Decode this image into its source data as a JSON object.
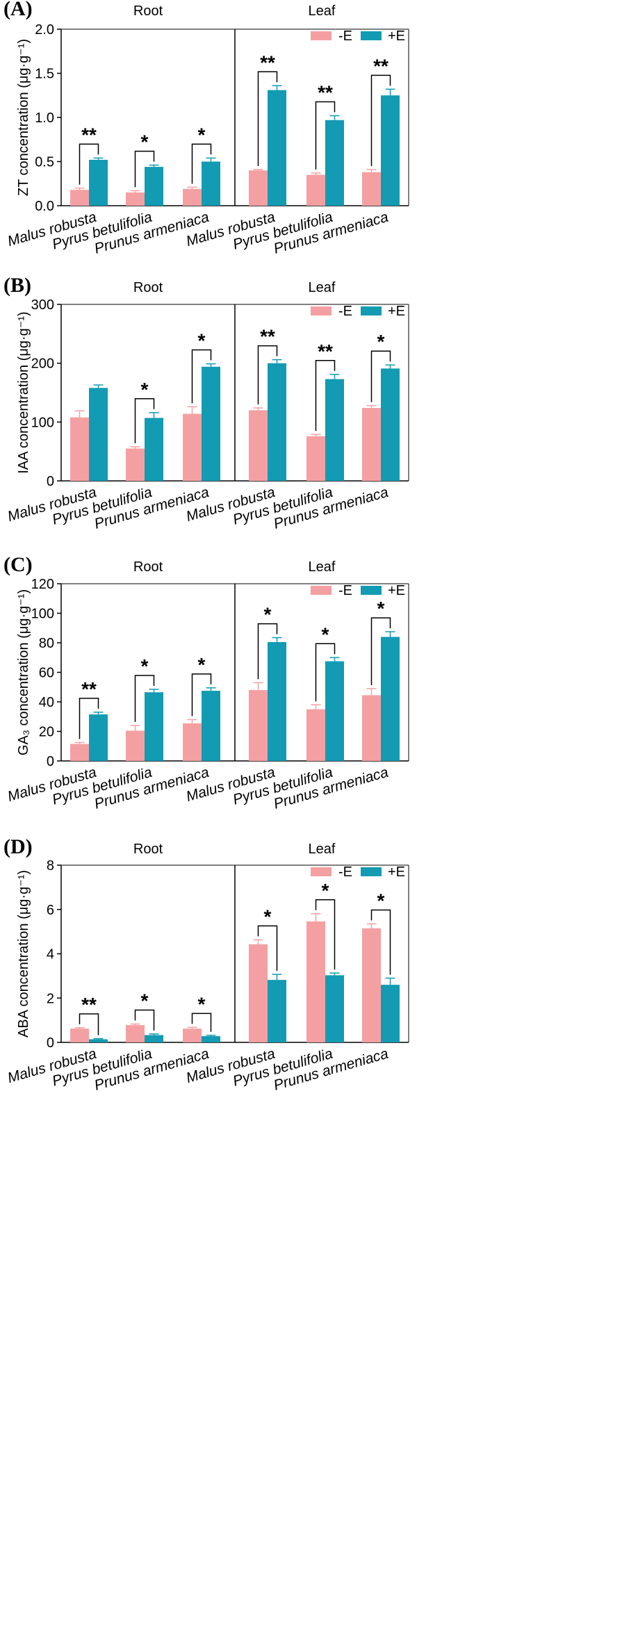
{
  "colors": {
    "minusE": "#F4A0A2",
    "plusE": "#129BB2",
    "axis": "#000000"
  },
  "legend": [
    "-E",
    "+E"
  ],
  "groups": [
    "Root",
    "Leaf"
  ],
  "categories": [
    "Malus robusta",
    "Pyrus betulifolia",
    "Prunus armeniaca"
  ],
  "chart_data": [
    {
      "panel": "(A)",
      "type": "bar",
      "ylabel": "ZT concentration (μg·g⁻¹)",
      "ylim": [
        0,
        2.0
      ],
      "yticks": [
        "0.0",
        "0.5",
        "1.0",
        "1.5",
        "2.0"
      ],
      "groups": [
        "Root",
        "Leaf"
      ],
      "categories": [
        "Malus robusta",
        "Pyrus betulifolia",
        "Prunus armeniaca"
      ],
      "series": [
        {
          "name": "-E",
          "values": [
            [
              0.18,
              0.15,
              0.19
            ],
            [
              0.4,
              0.35,
              0.38
            ]
          ],
          "errors": [
            [
              0.02,
              0.02,
              0.02
            ],
            [
              0.01,
              0.02,
              0.03
            ]
          ]
        },
        {
          "name": "+E",
          "values": [
            [
              0.52,
              0.44,
              0.5
            ],
            [
              1.31,
              0.97,
              1.25
            ]
          ],
          "errors": [
            [
              0.02,
              0.02,
              0.04
            ],
            [
              0.05,
              0.05,
              0.07
            ]
          ]
        }
      ],
      "significance": [
        [
          "**",
          "*",
          "*"
        ],
        [
          "**",
          "**",
          "**"
        ]
      ]
    },
    {
      "panel": "(B)",
      "type": "bar",
      "ylabel": "IAA concentration (μg·g⁻¹)",
      "ylim": [
        0,
        300
      ],
      "yticks": [
        "0",
        "100",
        "200",
        "300"
      ],
      "groups": [
        "Root",
        "Leaf"
      ],
      "categories": [
        "Malus robusta",
        "Pyrus betulifolia",
        "Prunus armeniaca"
      ],
      "series": [
        {
          "name": "-E",
          "values": [
            [
              108,
              55,
              114
            ],
            [
              120,
              76,
              124
            ]
          ],
          "errors": [
            [
              11,
              3,
              12
            ],
            [
              4,
              3,
              4
            ]
          ]
        },
        {
          "name": "+E",
          "values": [
            [
              158,
              107,
              194
            ],
            [
              200,
              173,
              191
            ]
          ],
          "errors": [
            [
              5,
              9,
              5
            ],
            [
              6,
              8,
              6
            ]
          ]
        }
      ],
      "significance": [
        [
          "",
          "*",
          "*"
        ],
        [
          "**",
          "**",
          "*"
        ]
      ]
    },
    {
      "panel": "(C)",
      "type": "bar",
      "ylabel": "GA₃ concentration (μg·g⁻¹)",
      "ylim": [
        0,
        120
      ],
      "yticks": [
        "0",
        "20",
        "40",
        "60",
        "80",
        "100",
        "120"
      ],
      "groups": [
        "Root",
        "Leaf"
      ],
      "categories": [
        "Malus robusta",
        "Pyrus betulifolia",
        "Prunus armeniaca"
      ],
      "series": [
        {
          "name": "-E",
          "values": [
            [
              11.5,
              20.5,
              25.5
            ],
            [
              48,
              35,
              44.5
            ]
          ],
          "errors": [
            [
              1,
              3.5,
              2.5
            ],
            [
              5,
              3,
              4.5
            ]
          ]
        },
        {
          "name": "+E",
          "values": [
            [
              31.5,
              46.5,
              47.5
            ],
            [
              80.5,
              67.5,
              84
            ]
          ],
          "errors": [
            [
              1.5,
              2,
              2
            ],
            [
              3,
              2.5,
              3.5
            ]
          ]
        }
      ],
      "significance": [
        [
          "**",
          "*",
          "*"
        ],
        [
          "*",
          "*",
          "*"
        ]
      ]
    },
    {
      "panel": "(D)",
      "type": "bar",
      "ylabel": "ABA concentration (μg·g⁻¹)",
      "ylim": [
        0,
        8
      ],
      "yticks": [
        "0",
        "2",
        "4",
        "6",
        "8"
      ],
      "groups": [
        "Root",
        "Leaf"
      ],
      "categories": [
        "Malus robusta",
        "Pyrus betulifolia",
        "Prunus armeniaca"
      ],
      "series": [
        {
          "name": "-E",
          "values": [
            [
              0.62,
              0.78,
              0.62
            ],
            [
              4.43,
              5.46,
              5.15
            ]
          ],
          "errors": [
            [
              0.04,
              0.05,
              0.06
            ],
            [
              0.2,
              0.35,
              0.2
            ]
          ]
        },
        {
          "name": "+E",
          "values": [
            [
              0.14,
              0.33,
              0.28
            ],
            [
              2.82,
              3.03,
              2.6
            ]
          ],
          "errors": [
            [
              0.03,
              0.05,
              0.04
            ],
            [
              0.25,
              0.1,
              0.3
            ]
          ]
        }
      ],
      "significance": [
        [
          "**",
          "*",
          "*"
        ],
        [
          "*",
          "*",
          "*"
        ]
      ]
    }
  ]
}
